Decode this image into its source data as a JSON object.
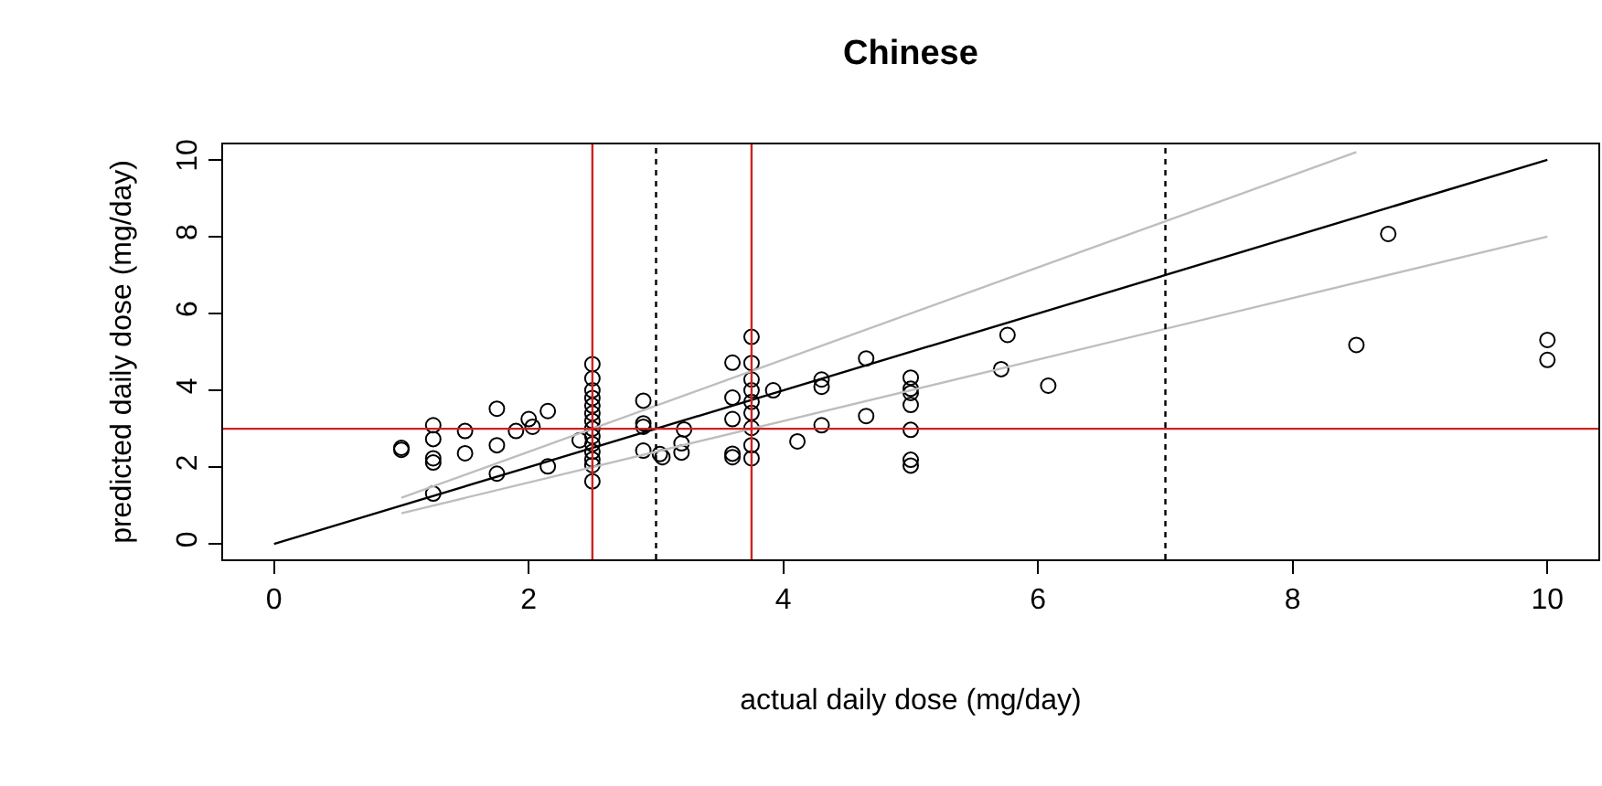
{
  "chart_data": {
    "type": "scatter",
    "title": "Chinese",
    "xlabel": "actual daily dose (mg/day)",
    "ylabel": "predicted daily dose (mg/day)",
    "xlim": [
      -0.4,
      10.4
    ],
    "ylim": [
      -0.4,
      10.4
    ],
    "xticks": [
      0,
      2,
      4,
      6,
      8,
      10
    ],
    "yticks": [
      0,
      2,
      4,
      6,
      8,
      10
    ],
    "series": [
      {
        "color": "#000000",
        "marker": "circle",
        "x": [
          1,
          1,
          1.25,
          1.25,
          1.25,
          1.25,
          1.25,
          1.5,
          1.5,
          1.75,
          1.75,
          1.75,
          1.9,
          2.0,
          2.03,
          2.15,
          2.15,
          2.4,
          2.5,
          2.5,
          2.5,
          2.5,
          2.5,
          2.5,
          2.5,
          2.5,
          2.5,
          2.5,
          2.5,
          2.5,
          2.5,
          2.5,
          2.9,
          2.9,
          2.9,
          2.9,
          3.03,
          3.05,
          3.22,
          3.2,
          3.2,
          3.6,
          3.6,
          3.6,
          3.6,
          3.6,
          3.75,
          3.75,
          3.75,
          3.75,
          3.75,
          3.75,
          3.75,
          3.75,
          3.75,
          3.92,
          4.3,
          4.3,
          4.3,
          4.11,
          4.65,
          4.65,
          5.0,
          5.0,
          5.0,
          5.0,
          5.0,
          5.0,
          5.0,
          5.76,
          5.71,
          6.08,
          8.75,
          8.5,
          10.0,
          10.0
        ],
        "values": [
          2.45,
          2.5,
          3.09,
          2.73,
          2.23,
          2.12,
          1.31,
          2.94,
          2.36,
          3.52,
          2.57,
          1.83,
          2.94,
          3.25,
          3.05,
          3.46,
          2.02,
          2.7,
          4.68,
          4.31,
          4.0,
          3.8,
          3.6,
          3.4,
          3.2,
          3.0,
          2.8,
          2.6,
          2.4,
          2.2,
          2.05,
          1.63,
          3.73,
          3.14,
          3.05,
          2.43,
          2.34,
          2.26,
          2.98,
          2.62,
          2.38,
          4.72,
          3.81,
          3.25,
          2.35,
          2.26,
          5.39,
          4.71,
          4.28,
          4.0,
          3.7,
          3.41,
          3.02,
          2.57,
          2.23,
          4.0,
          4.28,
          4.09,
          3.09,
          2.67,
          4.83,
          3.33,
          4.33,
          4.04,
          3.93,
          3.62,
          2.97,
          2.19,
          2.04,
          5.44,
          4.55,
          4.12,
          8.07,
          5.18,
          5.31,
          4.79
        ]
      },
      {
        "type": "line",
        "color": "#000000",
        "marker": "none",
        "line_style": "solid",
        "x": [
          0,
          10
        ],
        "values": [
          0,
          10
        ]
      },
      {
        "type": "line",
        "color": "#bebebe",
        "marker": "none",
        "line_style": "solid",
        "x": [
          1,
          8.5
        ],
        "values": [
          1.2,
          10.2
        ]
      },
      {
        "type": "line",
        "color": "#bebebe",
        "marker": "none",
        "line_style": "solid",
        "x": [
          1,
          10
        ],
        "values": [
          0.8,
          8
        ]
      }
    ],
    "ref_lines": [
      {
        "axis": "x",
        "value": 2.5,
        "color": "#cc2222",
        "line_style": "solid"
      },
      {
        "axis": "x",
        "value": 3.75,
        "color": "#cc2222",
        "line_style": "solid"
      },
      {
        "axis": "y",
        "value": 3,
        "color": "#cc2222",
        "line_style": "solid"
      },
      {
        "axis": "x",
        "value": 3,
        "color": "#000000",
        "line_style": "dotted"
      },
      {
        "axis": "x",
        "value": 7,
        "color": "#000000",
        "line_style": "dotted"
      }
    ]
  }
}
